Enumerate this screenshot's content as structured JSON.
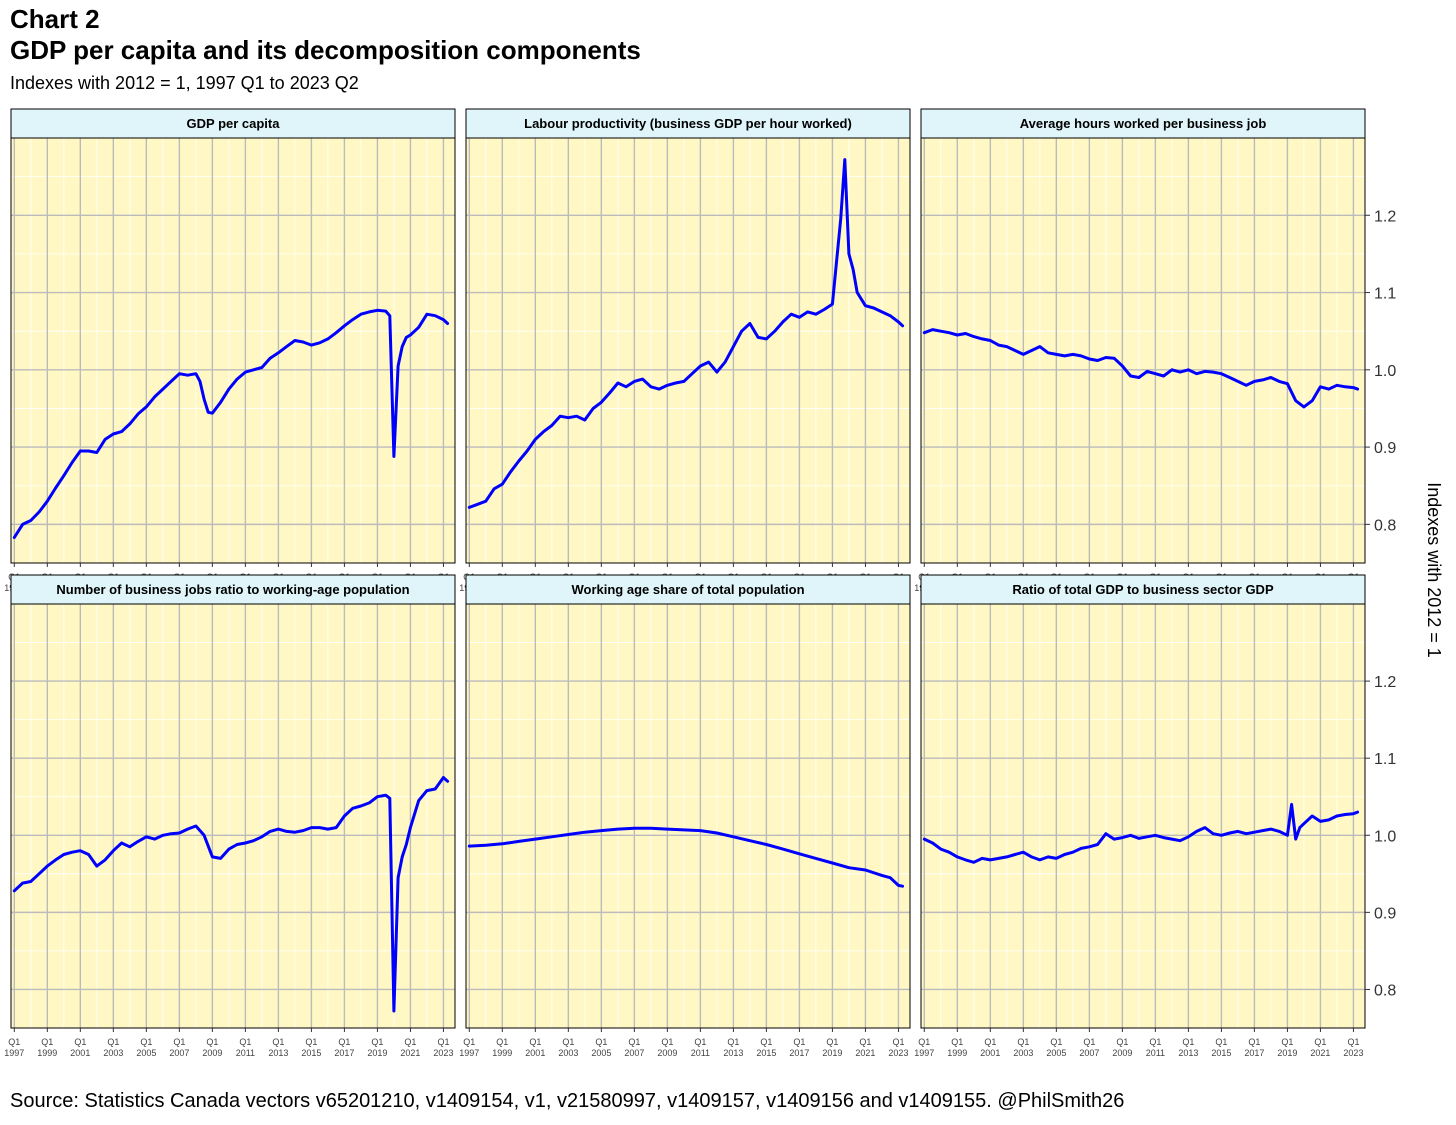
{
  "header": {
    "label": "Chart 2",
    "title": "GDP per capita and its decomposition components",
    "subtitle": "Indexes with 2012 = 1, 1997 Q1 to 2023 Q2"
  },
  "source": "Source: Statistics Canada vectors v65201210, v1409154, v1, v21580997, v1409157, v1409156 and v1409155. @PhilSmith26",
  "colors": {
    "panel_bg": "#fff8c4",
    "strip_bg": "#dff5f9",
    "grid_major": "#bbbbbb",
    "grid_minor": "#ffffff",
    "line": "#0000ff"
  },
  "chart_data": {
    "type": "line",
    "facets": "2x3",
    "ylabel": "Indexes with 2012 = 1",
    "ylim": [
      0.75,
      1.3
    ],
    "yticks": [
      0.8,
      0.9,
      1.0,
      1.1,
      1.2
    ],
    "y_tick_labels": [
      "0.8",
      "0.9",
      "1.0",
      "1.1",
      "1.2"
    ],
    "xlim": [
      1996.8,
      2023.7
    ],
    "x_tick_labels": [
      {
        "q": "Q1",
        "y": "1997"
      },
      {
        "q": "Q1",
        "y": "1999"
      },
      {
        "q": "Q1",
        "y": "2001"
      },
      {
        "q": "Q1",
        "y": "2003"
      },
      {
        "q": "Q1",
        "y": "2005"
      },
      {
        "q": "Q1",
        "y": "2007"
      },
      {
        "q": "Q1",
        "y": "2009"
      },
      {
        "q": "Q1",
        "y": "2011"
      },
      {
        "q": "Q1",
        "y": "2013"
      },
      {
        "q": "Q1",
        "y": "2015"
      },
      {
        "q": "Q1",
        "y": "2017"
      },
      {
        "q": "Q1",
        "y": "2019"
      },
      {
        "q": "Q1",
        "y": "2021"
      },
      {
        "q": "Q1",
        "y": "2023"
      }
    ],
    "panels": [
      {
        "title": "GDP per capita",
        "x": [
          1997.0,
          1997.5,
          1998.0,
          1998.5,
          1999.0,
          1999.5,
          2000.0,
          2000.5,
          2001.0,
          2001.5,
          2002.0,
          2002.5,
          2003.0,
          2003.5,
          2004.0,
          2004.5,
          2005.0,
          2005.5,
          2006.0,
          2006.5,
          2007.0,
          2007.5,
          2008.0,
          2008.25,
          2008.5,
          2008.75,
          2009.0,
          2009.5,
          2010.0,
          2010.5,
          2011.0,
          2011.5,
          2012.0,
          2012.5,
          2013.0,
          2013.5,
          2014.0,
          2014.5,
          2015.0,
          2015.5,
          2016.0,
          2016.5,
          2017.0,
          2017.5,
          2018.0,
          2018.5,
          2019.0,
          2019.5,
          2019.75,
          2020.0,
          2020.25,
          2020.5,
          2020.75,
          2021.0,
          2021.5,
          2022.0,
          2022.5,
          2023.0,
          2023.25
        ],
        "y": [
          0.783,
          0.8,
          0.805,
          0.816,
          0.83,
          0.847,
          0.863,
          0.88,
          0.895,
          0.895,
          0.893,
          0.91,
          0.917,
          0.92,
          0.93,
          0.943,
          0.952,
          0.965,
          0.975,
          0.985,
          0.995,
          0.993,
          0.995,
          0.985,
          0.962,
          0.945,
          0.944,
          0.958,
          0.975,
          0.988,
          0.997,
          1.0,
          1.003,
          1.015,
          1.022,
          1.03,
          1.038,
          1.036,
          1.032,
          1.035,
          1.04,
          1.048,
          1.057,
          1.065,
          1.072,
          1.075,
          1.077,
          1.076,
          1.07,
          0.888,
          1.005,
          1.03,
          1.042,
          1.045,
          1.055,
          1.072,
          1.07,
          1.065,
          1.06
        ]
      },
      {
        "title": "Labour productivity (business GDP per hour worked)",
        "x": [
          1997.0,
          1997.5,
          1998.0,
          1998.5,
          1999.0,
          1999.5,
          2000.0,
          2000.5,
          2001.0,
          2001.5,
          2002.0,
          2002.5,
          2003.0,
          2003.5,
          2004.0,
          2004.5,
          2005.0,
          2005.5,
          2006.0,
          2006.5,
          2007.0,
          2007.5,
          2008.0,
          2008.5,
          2009.0,
          2009.5,
          2010.0,
          2010.5,
          2011.0,
          2011.5,
          2012.0,
          2012.5,
          2013.0,
          2013.5,
          2014.0,
          2014.5,
          2015.0,
          2015.5,
          2016.0,
          2016.5,
          2017.0,
          2017.5,
          2018.0,
          2018.5,
          2019.0,
          2019.5,
          2019.75,
          2020.0,
          2020.25,
          2020.5,
          2021.0,
          2021.5,
          2022.0,
          2022.5,
          2023.0,
          2023.25
        ],
        "y": [
          0.822,
          0.826,
          0.83,
          0.846,
          0.852,
          0.868,
          0.882,
          0.895,
          0.91,
          0.92,
          0.928,
          0.94,
          0.938,
          0.94,
          0.935,
          0.95,
          0.958,
          0.97,
          0.983,
          0.978,
          0.985,
          0.988,
          0.978,
          0.975,
          0.98,
          0.983,
          0.985,
          0.995,
          1.005,
          1.01,
          0.997,
          1.01,
          1.03,
          1.05,
          1.06,
          1.042,
          1.04,
          1.05,
          1.062,
          1.072,
          1.068,
          1.075,
          1.072,
          1.078,
          1.085,
          1.195,
          1.272,
          1.15,
          1.13,
          1.1,
          1.083,
          1.08,
          1.075,
          1.07,
          1.062,
          1.057
        ]
      },
      {
        "title": "Average hours worked per business job",
        "x": [
          1997.0,
          1997.5,
          1998.0,
          1998.5,
          1999.0,
          1999.5,
          2000.0,
          2000.5,
          2001.0,
          2001.5,
          2002.0,
          2002.5,
          2003.0,
          2003.5,
          2004.0,
          2004.5,
          2005.0,
          2005.5,
          2006.0,
          2006.5,
          2007.0,
          2007.5,
          2008.0,
          2008.5,
          2009.0,
          2009.5,
          2010.0,
          2010.5,
          2011.0,
          2011.5,
          2012.0,
          2012.5,
          2013.0,
          2013.5,
          2014.0,
          2014.5,
          2015.0,
          2015.5,
          2016.0,
          2016.5,
          2017.0,
          2017.5,
          2018.0,
          2018.5,
          2019.0,
          2019.5,
          2020.0,
          2020.5,
          2021.0,
          2021.5,
          2022.0,
          2022.5,
          2023.0,
          2023.25
        ],
        "y": [
          1.048,
          1.052,
          1.05,
          1.048,
          1.045,
          1.047,
          1.043,
          1.04,
          1.038,
          1.032,
          1.03,
          1.025,
          1.02,
          1.025,
          1.03,
          1.022,
          1.02,
          1.018,
          1.02,
          1.018,
          1.014,
          1.012,
          1.016,
          1.015,
          1.005,
          0.992,
          0.99,
          0.998,
          0.995,
          0.992,
          1.0,
          0.997,
          1.0,
          0.995,
          0.998,
          0.997,
          0.995,
          0.99,
          0.985,
          0.98,
          0.985,
          0.987,
          0.99,
          0.985,
          0.982,
          0.96,
          0.952,
          0.96,
          0.978,
          0.975,
          0.98,
          0.978,
          0.977,
          0.975
        ]
      },
      {
        "title": "Number of business jobs ratio to working-age population",
        "x": [
          1997.0,
          1997.5,
          1998.0,
          1998.5,
          1999.0,
          1999.5,
          2000.0,
          2000.5,
          2001.0,
          2001.5,
          2002.0,
          2002.5,
          2003.0,
          2003.5,
          2004.0,
          2004.5,
          2005.0,
          2005.5,
          2006.0,
          2006.5,
          2007.0,
          2007.5,
          2008.0,
          2008.5,
          2009.0,
          2009.5,
          2010.0,
          2010.5,
          2011.0,
          2011.5,
          2012.0,
          2012.5,
          2013.0,
          2013.5,
          2014.0,
          2014.5,
          2015.0,
          2015.5,
          2016.0,
          2016.5,
          2017.0,
          2017.5,
          2018.0,
          2018.5,
          2019.0,
          2019.5,
          2019.75,
          2020.0,
          2020.25,
          2020.5,
          2020.75,
          2021.0,
          2021.5,
          2022.0,
          2022.5,
          2023.0,
          2023.25
        ],
        "y": [
          0.928,
          0.938,
          0.94,
          0.95,
          0.96,
          0.968,
          0.975,
          0.978,
          0.98,
          0.975,
          0.96,
          0.968,
          0.98,
          0.99,
          0.985,
          0.992,
          0.998,
          0.995,
          1.0,
          1.002,
          1.003,
          1.008,
          1.012,
          1.0,
          0.972,
          0.97,
          0.982,
          0.988,
          0.99,
          0.993,
          0.998,
          1.005,
          1.008,
          1.005,
          1.004,
          1.006,
          1.01,
          1.01,
          1.008,
          1.01,
          1.025,
          1.035,
          1.038,
          1.042,
          1.05,
          1.052,
          1.048,
          0.772,
          0.945,
          0.972,
          0.988,
          1.01,
          1.045,
          1.058,
          1.06,
          1.075,
          1.07
        ]
      },
      {
        "title": "Working age share of total population",
        "x": [
          1997.0,
          1998.0,
          1999.0,
          2000.0,
          2001.0,
          2002.0,
          2003.0,
          2004.0,
          2005.0,
          2006.0,
          2007.0,
          2008.0,
          2009.0,
          2010.0,
          2011.0,
          2012.0,
          2013.0,
          2014.0,
          2015.0,
          2016.0,
          2017.0,
          2018.0,
          2019.0,
          2020.0,
          2021.0,
          2022.0,
          2022.5,
          2023.0,
          2023.25
        ],
        "y": [
          0.986,
          0.987,
          0.989,
          0.992,
          0.995,
          0.998,
          1.001,
          1.004,
          1.006,
          1.008,
          1.009,
          1.009,
          1.008,
          1.007,
          1.006,
          1.003,
          0.998,
          0.993,
          0.988,
          0.982,
          0.976,
          0.97,
          0.964,
          0.958,
          0.955,
          0.948,
          0.945,
          0.935,
          0.934
        ]
      },
      {
        "title": "Ratio of total GDP to business sector GDP",
        "x": [
          1997.0,
          1997.5,
          1998.0,
          1998.5,
          1999.0,
          1999.5,
          2000.0,
          2000.5,
          2001.0,
          2001.5,
          2002.0,
          2002.5,
          2003.0,
          2003.5,
          2004.0,
          2004.5,
          2005.0,
          2005.5,
          2006.0,
          2006.5,
          2007.0,
          2007.5,
          2008.0,
          2008.5,
          2009.0,
          2009.5,
          2010.0,
          2010.5,
          2011.0,
          2011.5,
          2012.0,
          2012.5,
          2013.0,
          2013.5,
          2014.0,
          2014.5,
          2015.0,
          2015.5,
          2016.0,
          2016.5,
          2017.0,
          2017.5,
          2018.0,
          2018.5,
          2019.0,
          2019.25,
          2019.5,
          2019.75,
          2020.0,
          2020.5,
          2021.0,
          2021.5,
          2022.0,
          2022.5,
          2023.0,
          2023.25
        ],
        "y": [
          0.995,
          0.99,
          0.982,
          0.978,
          0.972,
          0.968,
          0.965,
          0.97,
          0.968,
          0.97,
          0.972,
          0.975,
          0.978,
          0.972,
          0.968,
          0.972,
          0.97,
          0.975,
          0.978,
          0.983,
          0.985,
          0.988,
          1.002,
          0.995,
          0.997,
          1.0,
          0.996,
          0.998,
          1.0,
          0.997,
          0.995,
          0.993,
          0.998,
          1.005,
          1.01,
          1.002,
          1.0,
          1.003,
          1.005,
          1.002,
          1.004,
          1.006,
          1.008,
          1.005,
          1.0,
          1.04,
          0.995,
          1.01,
          1.015,
          1.025,
          1.018,
          1.02,
          1.025,
          1.027,
          1.028,
          1.03
        ]
      }
    ]
  }
}
